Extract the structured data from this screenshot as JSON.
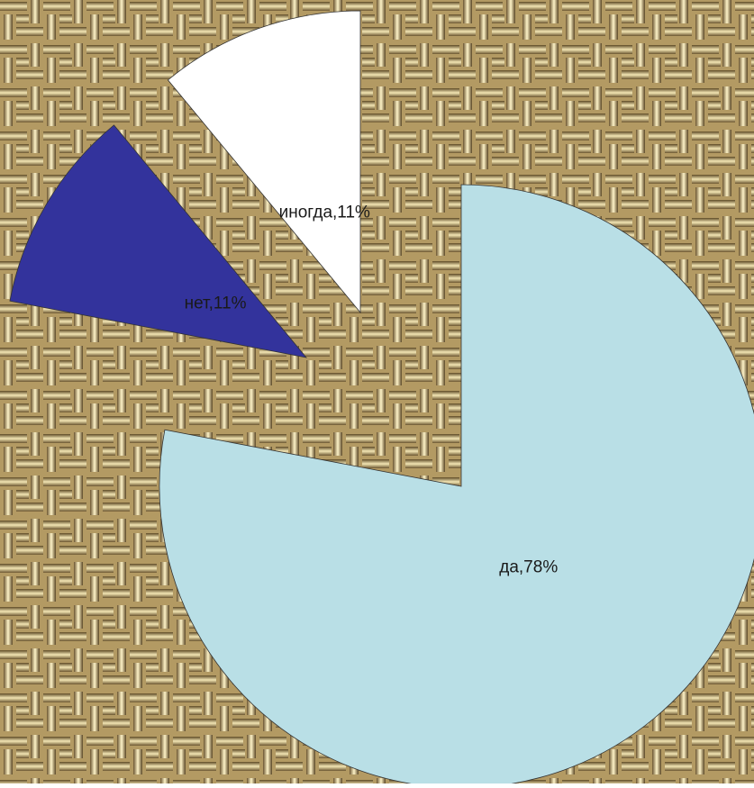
{
  "chart_data": {
    "type": "pie",
    "values": [
      78,
      11,
      11
    ],
    "value_labels": [
      "да,78%",
      "нет,11%",
      "иногда,11%"
    ],
    "colors": [
      "#b9dfe6",
      "#33339c",
      "#ffffff"
    ]
  }
}
